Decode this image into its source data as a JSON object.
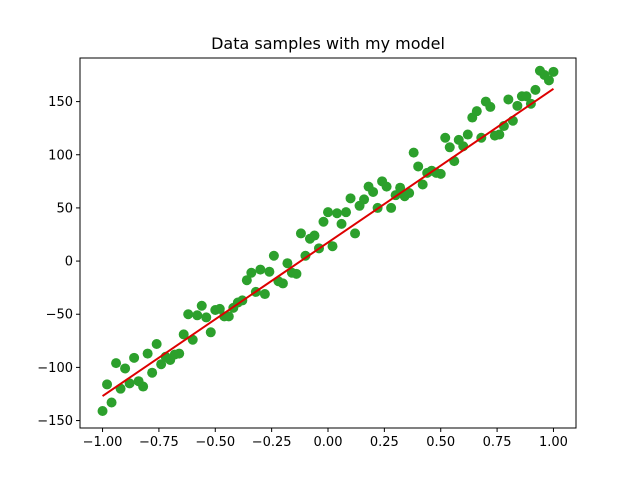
{
  "chart_data": {
    "type": "scatter",
    "title": "Data samples with my model",
    "xlabel": "",
    "ylabel": "",
    "xlim": [
      -1.1,
      1.1
    ],
    "ylim": [
      -157,
      191
    ],
    "xticks": [
      -1.0,
      -0.75,
      -0.5,
      -0.25,
      0.0,
      0.25,
      0.5,
      0.75,
      1.0
    ],
    "xtick_labels": [
      "−1.00",
      "−0.75",
      "−0.50",
      "−0.25",
      "0.00",
      "0.25",
      "0.50",
      "0.75",
      "1.00"
    ],
    "yticks": [
      -150,
      -100,
      -50,
      0,
      50,
      100,
      150
    ],
    "ytick_labels": [
      "−150",
      "−100",
      "−50",
      "0",
      "50",
      "100",
      "150"
    ],
    "grid": false,
    "legend": "none",
    "series": [
      {
        "kind": "scatter",
        "color": "#2ca02c",
        "x": [
          -1.0,
          -0.98,
          -0.96,
          -0.94,
          -0.92,
          -0.9,
          -0.88,
          -0.86,
          -0.84,
          -0.82,
          -0.8,
          -0.78,
          -0.76,
          -0.74,
          -0.72,
          -0.7,
          -0.68,
          -0.66,
          -0.64,
          -0.62,
          -0.6,
          -0.58,
          -0.56,
          -0.54,
          -0.52,
          -0.5,
          -0.48,
          -0.46,
          -0.44,
          -0.42,
          -0.4,
          -0.38,
          -0.36,
          -0.34,
          -0.32,
          -0.3,
          -0.28,
          -0.26,
          -0.24,
          -0.22,
          -0.2,
          -0.18,
          -0.16,
          -0.14,
          -0.12,
          -0.1,
          -0.08,
          -0.06,
          -0.04,
          -0.02,
          0.0,
          0.02,
          0.04,
          0.06,
          0.08,
          0.1,
          0.12,
          0.14,
          0.16,
          0.18,
          0.2,
          0.22,
          0.24,
          0.26,
          0.28,
          0.3,
          0.32,
          0.34,
          0.36,
          0.38,
          0.4,
          0.42,
          0.44,
          0.46,
          0.48,
          0.5,
          0.52,
          0.54,
          0.56,
          0.58,
          0.6,
          0.62,
          0.64,
          0.66,
          0.68,
          0.7,
          0.72,
          0.74,
          0.76,
          0.78,
          0.8,
          0.82,
          0.84,
          0.86,
          0.88,
          0.9,
          0.92,
          0.94,
          0.96,
          0.98,
          1.0
        ],
        "y": [
          -141,
          -116,
          -133,
          -96,
          -120,
          -101,
          -115,
          -91,
          -113,
          -118,
          -87,
          -105,
          -78,
          -97,
          -90,
          -93,
          -88,
          -87,
          -69,
          -50,
          -74,
          -51,
          -42,
          -53,
          -67,
          -46,
          -45,
          -52,
          -52,
          -44,
          -39,
          -37,
          -18,
          -11,
          -29,
          -8,
          -31,
          -10,
          5,
          -19,
          -21,
          -2,
          -11,
          -12,
          26,
          5,
          21,
          24,
          12,
          37,
          46,
          14,
          45,
          35,
          46,
          59,
          26,
          52,
          58,
          70,
          65,
          50,
          75,
          70,
          50,
          62,
          69,
          61,
          64,
          102,
          89,
          72,
          83,
          85,
          83,
          82,
          116,
          107,
          94,
          114,
          108,
          119,
          135,
          141,
          116,
          150,
          145,
          118,
          119,
          127,
          152,
          132,
          146,
          155,
          155,
          148,
          161,
          179,
          175,
          170,
          178
        ]
      },
      {
        "kind": "line",
        "color": "#dd0000",
        "x": [
          -1.0,
          1.0
        ],
        "y": [
          -127,
          162
        ]
      }
    ]
  }
}
